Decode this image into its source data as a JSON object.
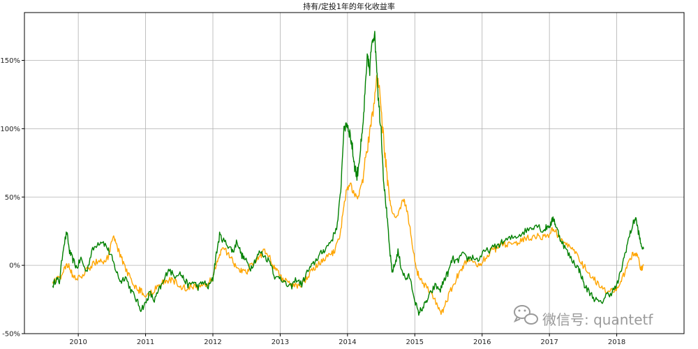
{
  "chart_data": {
    "type": "line",
    "title": "持有/定投1年的年化收益率",
    "xlabel": "",
    "ylabel": "",
    "x_ticks": [
      "2010",
      "2011",
      "2012",
      "2013",
      "2014",
      "2015",
      "2016",
      "2017",
      "2018"
    ],
    "y_ticks": [
      "-50%",
      "0%",
      "50%",
      "100%",
      "150%"
    ],
    "xlim": [
      2009.2,
      2019.0
    ],
    "ylim": [
      -50,
      185
    ],
    "grid": true,
    "legend": "none",
    "series": [
      {
        "color": "#008000",
        "points": [
          [
            2009.62,
            -15
          ],
          [
            2009.67,
            -10
          ],
          [
            2009.72,
            -12
          ],
          [
            2009.78,
            14
          ],
          [
            2009.83,
            24
          ],
          [
            2009.87,
            10
          ],
          [
            2009.92,
            4
          ],
          [
            2009.98,
            -2
          ],
          [
            2010.04,
            5
          ],
          [
            2010.12,
            -5
          ],
          [
            2010.2,
            10
          ],
          [
            2010.28,
            16
          ],
          [
            2010.36,
            18
          ],
          [
            2010.44,
            12
          ],
          [
            2010.5,
            5
          ],
          [
            2010.57,
            -5
          ],
          [
            2010.63,
            -12
          ],
          [
            2010.7,
            -8
          ],
          [
            2010.78,
            -18
          ],
          [
            2010.86,
            -25
          ],
          [
            2010.93,
            -32
          ],
          [
            2011.0,
            -28
          ],
          [
            2011.06,
            -20
          ],
          [
            2011.13,
            -26
          ],
          [
            2011.2,
            -18
          ],
          [
            2011.27,
            -12
          ],
          [
            2011.34,
            -2
          ],
          [
            2011.42,
            -8
          ],
          [
            2011.5,
            -5
          ],
          [
            2011.57,
            -10
          ],
          [
            2011.64,
            -15
          ],
          [
            2011.71,
            -12
          ],
          [
            2011.78,
            -16
          ],
          [
            2011.86,
            -12
          ],
          [
            2011.93,
            -16
          ],
          [
            2012.0,
            -10
          ],
          [
            2012.04,
            5
          ],
          [
            2012.1,
            22
          ],
          [
            2012.16,
            18
          ],
          [
            2012.24,
            14
          ],
          [
            2012.3,
            10
          ],
          [
            2012.36,
            18
          ],
          [
            2012.42,
            8
          ],
          [
            2012.48,
            4
          ],
          [
            2012.56,
            -2
          ],
          [
            2012.63,
            4
          ],
          [
            2012.7,
            10
          ],
          [
            2012.78,
            6
          ],
          [
            2012.86,
            2
          ],
          [
            2012.93,
            -10
          ],
          [
            2013.0,
            -8
          ],
          [
            2013.08,
            -14
          ],
          [
            2013.16,
            -16
          ],
          [
            2013.24,
            -10
          ],
          [
            2013.32,
            -14
          ],
          [
            2013.4,
            -5
          ],
          [
            2013.48,
            0
          ],
          [
            2013.56,
            6
          ],
          [
            2013.63,
            10
          ],
          [
            2013.7,
            14
          ],
          [
            2013.78,
            20
          ],
          [
            2013.85,
            30
          ],
          [
            2013.9,
            55
          ],
          [
            2013.94,
            95
          ],
          [
            2013.98,
            105
          ],
          [
            2014.02,
            100
          ],
          [
            2014.06,
            90
          ],
          [
            2014.1,
            75
          ],
          [
            2014.14,
            65
          ],
          [
            2014.18,
            80
          ],
          [
            2014.22,
            95
          ],
          [
            2014.26,
            125
          ],
          [
            2014.3,
            155
          ],
          [
            2014.33,
            140
          ],
          [
            2014.36,
            165
          ],
          [
            2014.4,
            170
          ],
          [
            2014.43,
            150
          ],
          [
            2014.46,
            120
          ],
          [
            2014.5,
            100
          ],
          [
            2014.54,
            60
          ],
          [
            2014.58,
            40
          ],
          [
            2014.62,
            15
          ],
          [
            2014.66,
            -5
          ],
          [
            2014.7,
            0
          ],
          [
            2014.75,
            10
          ],
          [
            2014.8,
            -2
          ],
          [
            2014.86,
            -10
          ],
          [
            2014.92,
            -8
          ],
          [
            2015.0,
            -25
          ],
          [
            2015.05,
            -35
          ],
          [
            2015.1,
            -32
          ],
          [
            2015.16,
            -28
          ],
          [
            2015.22,
            -22
          ],
          [
            2015.3,
            -15
          ],
          [
            2015.38,
            -18
          ],
          [
            2015.44,
            -10
          ],
          [
            2015.5,
            -5
          ],
          [
            2015.56,
            5
          ],
          [
            2015.62,
            2
          ],
          [
            2015.7,
            8
          ],
          [
            2015.78,
            5
          ],
          [
            2015.86,
            6
          ],
          [
            2015.94,
            4
          ],
          [
            2016.04,
            10
          ],
          [
            2016.14,
            12
          ],
          [
            2016.24,
            15
          ],
          [
            2016.34,
            18
          ],
          [
            2016.44,
            20
          ],
          [
            2016.54,
            22
          ],
          [
            2016.64,
            25
          ],
          [
            2016.74,
            28
          ],
          [
            2016.82,
            30
          ],
          [
            2016.9,
            25
          ],
          [
            2016.96,
            28
          ],
          [
            2017.02,
            30
          ],
          [
            2017.06,
            35
          ],
          [
            2017.1,
            28
          ],
          [
            2017.16,
            20
          ],
          [
            2017.24,
            12
          ],
          [
            2017.32,
            5
          ],
          [
            2017.4,
            0
          ],
          [
            2017.46,
            -5
          ],
          [
            2017.52,
            -15
          ],
          [
            2017.6,
            -20
          ],
          [
            2017.68,
            -25
          ],
          [
            2017.76,
            -28
          ],
          [
            2017.84,
            -22
          ],
          [
            2017.92,
            -20
          ],
          [
            2018.0,
            -15
          ],
          [
            2018.06,
            -5
          ],
          [
            2018.12,
            8
          ],
          [
            2018.18,
            20
          ],
          [
            2018.24,
            30
          ],
          [
            2018.28,
            35
          ],
          [
            2018.32,
            25
          ],
          [
            2018.36,
            15
          ],
          [
            2018.4,
            12
          ]
        ]
      },
      {
        "color": "#FFA500",
        "points": [
          [
            2009.62,
            -12
          ],
          [
            2009.68,
            -10
          ],
          [
            2009.74,
            -8
          ],
          [
            2009.8,
            -2
          ],
          [
            2009.86,
            0
          ],
          [
            2009.92,
            -8
          ],
          [
            2010.0,
            -10
          ],
          [
            2010.08,
            -6
          ],
          [
            2010.16,
            -2
          ],
          [
            2010.24,
            2
          ],
          [
            2010.32,
            4
          ],
          [
            2010.4,
            2
          ],
          [
            2010.46,
            8
          ],
          [
            2010.52,
            22
          ],
          [
            2010.56,
            15
          ],
          [
            2010.62,
            8
          ],
          [
            2010.68,
            0
          ],
          [
            2010.76,
            -8
          ],
          [
            2010.84,
            -15
          ],
          [
            2010.9,
            -18
          ],
          [
            2010.96,
            -20
          ],
          [
            2011.04,
            -22
          ],
          [
            2011.12,
            -18
          ],
          [
            2011.2,
            -15
          ],
          [
            2011.28,
            -12
          ],
          [
            2011.36,
            -10
          ],
          [
            2011.44,
            -12
          ],
          [
            2011.52,
            -15
          ],
          [
            2011.6,
            -17
          ],
          [
            2011.68,
            -15
          ],
          [
            2011.76,
            -16
          ],
          [
            2011.84,
            -14
          ],
          [
            2011.92,
            -15
          ],
          [
            2012.0,
            -8
          ],
          [
            2012.06,
            2
          ],
          [
            2012.12,
            10
          ],
          [
            2012.18,
            12
          ],
          [
            2012.26,
            6
          ],
          [
            2012.32,
            0
          ],
          [
            2012.38,
            -2
          ],
          [
            2012.44,
            -4
          ],
          [
            2012.5,
            -6
          ],
          [
            2012.56,
            0
          ],
          [
            2012.62,
            4
          ],
          [
            2012.7,
            6
          ],
          [
            2012.76,
            12
          ],
          [
            2012.82,
            8
          ],
          [
            2012.9,
            0
          ],
          [
            2012.96,
            -5
          ],
          [
            2013.04,
            -10
          ],
          [
            2013.12,
            -12
          ],
          [
            2013.2,
            -14
          ],
          [
            2013.28,
            -15
          ],
          [
            2013.36,
            -12
          ],
          [
            2013.44,
            -6
          ],
          [
            2013.52,
            -2
          ],
          [
            2013.6,
            2
          ],
          [
            2013.68,
            5
          ],
          [
            2013.76,
            8
          ],
          [
            2013.82,
            12
          ],
          [
            2013.88,
            20
          ],
          [
            2013.94,
            40
          ],
          [
            2013.98,
            55
          ],
          [
            2014.04,
            60
          ],
          [
            2014.1,
            52
          ],
          [
            2014.16,
            50
          ],
          [
            2014.22,
            62
          ],
          [
            2014.28,
            80
          ],
          [
            2014.34,
            100
          ],
          [
            2014.4,
            120
          ],
          [
            2014.44,
            138
          ],
          [
            2014.48,
            125
          ],
          [
            2014.52,
            100
          ],
          [
            2014.56,
            80
          ],
          [
            2014.6,
            60
          ],
          [
            2014.64,
            42
          ],
          [
            2014.7,
            35
          ],
          [
            2014.76,
            38
          ],
          [
            2014.82,
            48
          ],
          [
            2014.86,
            45
          ],
          [
            2014.92,
            30
          ],
          [
            2014.98,
            10
          ],
          [
            2015.04,
            -5
          ],
          [
            2015.1,
            -12
          ],
          [
            2015.18,
            -16
          ],
          [
            2015.26,
            -22
          ],
          [
            2015.34,
            -30
          ],
          [
            2015.4,
            -35
          ],
          [
            2015.46,
            -28
          ],
          [
            2015.52,
            -20
          ],
          [
            2015.6,
            -12
          ],
          [
            2015.66,
            -5
          ],
          [
            2015.72,
            0
          ],
          [
            2015.8,
            5
          ],
          [
            2015.88,
            2
          ],
          [
            2015.96,
            0
          ],
          [
            2016.04,
            5
          ],
          [
            2016.12,
            10
          ],
          [
            2016.2,
            12
          ],
          [
            2016.28,
            14
          ],
          [
            2016.36,
            16
          ],
          [
            2016.44,
            15
          ],
          [
            2016.52,
            17
          ],
          [
            2016.6,
            18
          ],
          [
            2016.68,
            20
          ],
          [
            2016.76,
            20
          ],
          [
            2016.84,
            22
          ],
          [
            2016.92,
            20
          ],
          [
            2017.0,
            22
          ],
          [
            2017.06,
            28
          ],
          [
            2017.12,
            22
          ],
          [
            2017.18,
            18
          ],
          [
            2017.26,
            15
          ],
          [
            2017.34,
            12
          ],
          [
            2017.42,
            6
          ],
          [
            2017.5,
            0
          ],
          [
            2017.58,
            -5
          ],
          [
            2017.66,
            -10
          ],
          [
            2017.74,
            -15
          ],
          [
            2017.82,
            -18
          ],
          [
            2017.9,
            -20
          ],
          [
            2017.98,
            -18
          ],
          [
            2018.06,
            -12
          ],
          [
            2018.12,
            -5
          ],
          [
            2018.18,
            2
          ],
          [
            2018.24,
            8
          ],
          [
            2018.28,
            10
          ],
          [
            2018.32,
            5
          ],
          [
            2018.36,
            -2
          ],
          [
            2018.4,
            0
          ]
        ]
      }
    ]
  },
  "watermark": {
    "text": "微信号: quantetf",
    "icon": "wechat-icon"
  }
}
